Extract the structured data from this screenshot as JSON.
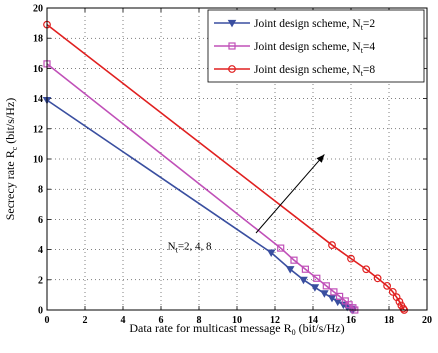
{
  "chart_data": {
    "type": "line",
    "title": "",
    "xlabel": "Data rate for multicast message R",
    "xlabel_sub": "0",
    "xlabel_unit": " (bit/s/Hz)",
    "ylabel": "Secrecy rate R",
    "ylabel_sub": "c",
    "ylabel_unit": " (bit/s/Hz)",
    "xlim": [
      0,
      20
    ],
    "ylim": [
      0,
      20
    ],
    "xticks": [
      "0",
      "2",
      "4",
      "6",
      "8",
      "10",
      "12",
      "14",
      "16",
      "18",
      "20"
    ],
    "yticks": [
      "0",
      "2",
      "4",
      "6",
      "8",
      "10",
      "12",
      "14",
      "16",
      "18",
      "20"
    ],
    "grid": "dotted",
    "legend_position": "top-right",
    "series": [
      {
        "name_main": "Joint design scheme, N",
        "name_sub": "t",
        "name_tail": "=2",
        "color": "#3a4fa0",
        "marker": "triangle-down",
        "x": [
          0,
          11.8,
          12.8,
          13.5,
          14.1,
          14.6,
          15.0,
          15.3,
          15.6,
          15.8,
          16.0,
          16.1
        ],
        "y": [
          13.9,
          3.8,
          2.7,
          2.0,
          1.5,
          1.1,
          0.8,
          0.55,
          0.35,
          0.2,
          0.08,
          0.0
        ]
      },
      {
        "name_main": "Joint design scheme, N",
        "name_sub": "t",
        "name_tail": "=4",
        "color": "#c050b8",
        "marker": "square",
        "x": [
          0,
          12.3,
          13.0,
          13.6,
          14.2,
          14.7,
          15.1,
          15.4,
          15.7,
          15.9,
          16.1,
          16.2
        ],
        "y": [
          16.3,
          4.1,
          3.3,
          2.7,
          2.1,
          1.6,
          1.2,
          0.9,
          0.6,
          0.35,
          0.15,
          0.0
        ]
      },
      {
        "name_main": "Joint design scheme, N",
        "name_sub": "t",
        "name_tail": "=8",
        "color": "#e02020",
        "marker": "circle",
        "x": [
          0,
          15.0,
          16.0,
          16.8,
          17.4,
          17.9,
          18.2,
          18.4,
          18.55,
          18.65,
          18.75,
          18.8
        ],
        "y": [
          18.9,
          4.3,
          3.4,
          2.7,
          2.1,
          1.6,
          1.2,
          0.85,
          0.55,
          0.3,
          0.1,
          0.0
        ]
      }
    ],
    "annotation": {
      "main": "N",
      "sub": "t",
      "tail": "=2, 4, 8",
      "arrow_from": [
        11.0,
        5.1
      ],
      "arrow_to": [
        14.6,
        10.3
      ],
      "text_x": 6.35,
      "text_y": 4.0
    }
  }
}
